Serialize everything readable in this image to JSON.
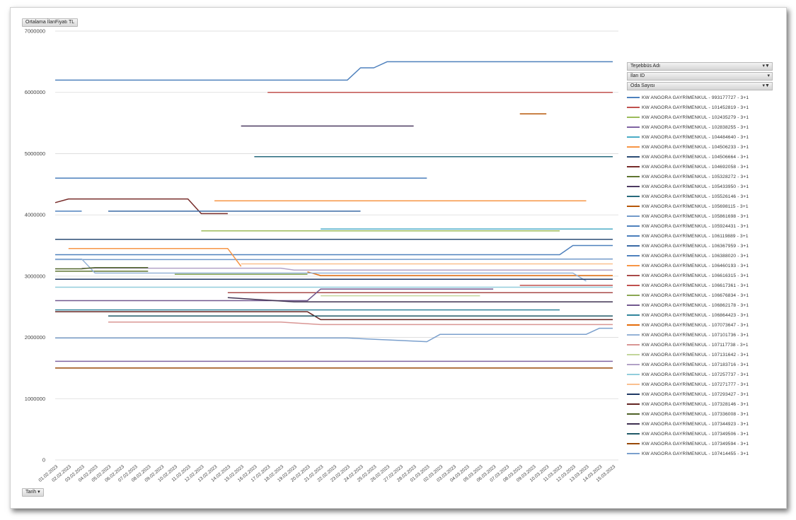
{
  "value_field_label": "Ortalama İlanFiyatı TL",
  "axis_field_label": "Tarih",
  "axis_field_icon": "dropdown-arrow-icon",
  "filters": [
    {
      "label": "Teşebbüs Adı",
      "icon": "filter-icon"
    },
    {
      "label": "İlan ID",
      "icon": "dropdown-arrow-icon"
    },
    {
      "label": "Oda Sayısı",
      "icon": "filter-icon"
    }
  ],
  "chart_data": {
    "type": "line",
    "ylim": [
      0,
      7000000
    ],
    "grid": true,
    "legend_position": "right",
    "y_ticks": [
      {
        "value": 0,
        "label": "0"
      },
      {
        "value": 1000000,
        "label": "1000000"
      },
      {
        "value": 2000000,
        "label": "2000000"
      },
      {
        "value": 3000000,
        "label": "3000000"
      },
      {
        "value": 4000000,
        "label": "4000000"
      },
      {
        "value": 5000000,
        "label": "5000000"
      },
      {
        "value": 6000000,
        "label": "6000000"
      },
      {
        "value": 7000000,
        "label": "7000000"
      }
    ],
    "x_categories": [
      "01.02.2023",
      "02.02.2023",
      "03.02.2023",
      "04.02.2023",
      "05.02.2023",
      "06.02.2023",
      "07.02.2023",
      "08.02.2023",
      "09.02.2023",
      "10.02.2023",
      "11.02.2023",
      "12.02.2023",
      "13.02.2023",
      "14.02.2023",
      "15.02.2023",
      "16.02.2023",
      "17.02.2023",
      "18.02.2023",
      "19.02.2023",
      "20.02.2023",
      "21.02.2023",
      "22.02.2023",
      "23.02.2023",
      "24.02.2023",
      "25.02.2023",
      "26.02.2023",
      "27.02.2023",
      "28.02.2023",
      "01.03.2023",
      "02.03.2023",
      "03.03.2023",
      "04.03.2023",
      "05.03.2023",
      "06.03.2023",
      "07.03.2023",
      "08.03.2023",
      "09.03.2023",
      "10.03.2023",
      "11.03.2023",
      "12.03.2023",
      "13.03.2023",
      "14.03.2023",
      "15.03.2023"
    ],
    "series": [
      {
        "name": "KW ANGORA GAYRİMENKUL - 993177727 - 3+1",
        "color": "#4e81bd",
        "points": [
          [
            0,
            4060000
          ],
          [
            2,
            4060000
          ]
        ]
      },
      {
        "name": "KW ANGORA GAYRİMENKUL - 101452819 - 3+1",
        "color": "#c0504d",
        "points": [
          [
            16,
            6000000
          ],
          [
            42,
            6000000
          ]
        ]
      },
      {
        "name": "KW ANGORA GAYRİMENKUL - 102435279 - 3+1",
        "color": "#9bbb59",
        "points": [
          [
            11,
            3740000
          ],
          [
            38,
            3740000
          ]
        ]
      },
      {
        "name": "KW ANGORA GAYRİMENKUL - 102838255 - 3+1",
        "color": "#8064a2",
        "points": [
          [
            0,
            1610000
          ],
          [
            42,
            1610000
          ]
        ]
      },
      {
        "name": "KW ANGORA GAYRİMENKUL - 104484640 - 3+1",
        "color": "#4bacc6",
        "points": [
          [
            20,
            3770000
          ],
          [
            42,
            3770000
          ]
        ]
      },
      {
        "name": "KW ANGORA GAYRİMENKUL - 104506233 - 3+1",
        "color": "#f79646",
        "points": [
          [
            12,
            4230000
          ],
          [
            40,
            4230000
          ]
        ]
      },
      {
        "name": "KW ANGORA GAYRİMENKUL - 104506664 - 3+1",
        "color": "#2c4d75",
        "points": [
          [
            0,
            3600000
          ],
          [
            42,
            3600000
          ]
        ]
      },
      {
        "name": "KW ANGORA GAYRİMENKUL - 104692058 - 3+1",
        "color": "#772c2a",
        "points": [
          [
            0,
            4200000
          ],
          [
            1,
            4260000
          ],
          [
            10,
            4260000
          ],
          [
            11,
            4020000
          ],
          [
            13,
            4020000
          ]
        ]
      },
      {
        "name": "KW ANGORA GAYRİMENKUL - 105328272 - 3+1",
        "color": "#5f7530",
        "points": [
          [
            0,
            3080000
          ],
          [
            7,
            3080000
          ]
        ]
      },
      {
        "name": "KW ANGORA GAYRİMENKUL - 105433950 - 3+1",
        "color": "#4d3b62",
        "points": [
          [
            14,
            5450000
          ],
          [
            27,
            5450000
          ]
        ]
      },
      {
        "name": "KW ANGORA GAYRİMENKUL - 105526146 - 3+1",
        "color": "#276a7c",
        "points": [
          [
            15,
            4950000
          ],
          [
            42,
            4950000
          ]
        ]
      },
      {
        "name": "KW ANGORA GAYRİMENKUL - 105698115 - 3+1",
        "color": "#b65708",
        "points": [
          [
            35,
            5650000
          ],
          [
            37,
            5650000
          ]
        ]
      },
      {
        "name": "KW ANGORA GAYRİMENKUL - 105861698 - 3+1",
        "color": "#729aca",
        "points": [
          [
            0,
            3270000
          ],
          [
            6,
            3270000
          ],
          [
            20,
            3270000
          ],
          [
            42,
            3280000
          ]
        ]
      },
      {
        "name": "KW ANGORA GAYRİMENKUL - 105924431 - 3+1",
        "color": "#4f81bd",
        "points": [
          [
            0,
            6200000
          ],
          [
            22,
            6200000
          ],
          [
            23,
            6400000
          ],
          [
            24,
            6400000
          ],
          [
            25,
            6500000
          ],
          [
            42,
            6500000
          ]
        ]
      },
      {
        "name": "KW ANGORA GAYRİMENKUL - 106119889 - 3+1",
        "color": "#4a7ebb",
        "points": [
          [
            0,
            4600000
          ],
          [
            28,
            4600000
          ]
        ]
      },
      {
        "name": "KW ANGORA GAYRİMENKUL - 106367959 - 3+1",
        "color": "#3a6aa5",
        "points": [
          [
            4,
            4060000
          ],
          [
            23,
            4060000
          ]
        ]
      },
      {
        "name": "KW ANGORA GAYRİMENKUL - 106388020 - 3+1",
        "color": "#4f81bd",
        "points": [
          [
            0,
            3350000
          ],
          [
            38,
            3350000
          ],
          [
            39,
            3500000
          ],
          [
            42,
            3500000
          ]
        ]
      },
      {
        "name": "KW ANGORA GAYRİMENKUL - 106460193 - 3+1",
        "color": "#f79646",
        "points": [
          [
            1,
            3450000
          ],
          [
            13,
            3450000
          ],
          [
            14,
            3160000
          ]
        ]
      },
      {
        "name": "KW ANGORA GAYRİMENKUL - 106616315 - 3+1",
        "color": "#a94a48",
        "points": [
          [
            13,
            2730000
          ],
          [
            42,
            2730000
          ]
        ]
      },
      {
        "name": "KW ANGORA GAYRİMENKUL - 106617361 - 3+1",
        "color": "#c0504d",
        "points": [
          [
            35,
            2850000
          ],
          [
            42,
            2850000
          ]
        ]
      },
      {
        "name": "KW ANGORA GAYRİMENKUL - 106676834 - 3+1",
        "color": "#8aa653",
        "points": [
          [
            9,
            3030000
          ],
          [
            19,
            3030000
          ]
        ]
      },
      {
        "name": "KW ANGORA GAYRİMENKUL - 106862178 - 3+1",
        "color": "#71588f",
        "points": [
          [
            0,
            2600000
          ],
          [
            13,
            2600000
          ],
          [
            19,
            2600000
          ],
          [
            20,
            2790000
          ],
          [
            33,
            2790000
          ]
        ]
      },
      {
        "name": "KW ANGORA GAYRİMENKUL - 106864423 - 3+1",
        "color": "#31859c",
        "points": [
          [
            0,
            2450000
          ],
          [
            38,
            2450000
          ]
        ]
      },
      {
        "name": "KW ANGORA GAYRİMENKUL - 107073647 - 3+1",
        "color": "#e46c0a",
        "points": [
          [
            19,
            3070000
          ],
          [
            20,
            3010000
          ],
          [
            42,
            3010000
          ]
        ]
      },
      {
        "name": "KW ANGORA GAYRİMENKUL - 107101736 - 3+1",
        "color": "#95b3d7",
        "points": [
          [
            0,
            3280000
          ],
          [
            2,
            3280000
          ],
          [
            3,
            3050000
          ],
          [
            6,
            3050000
          ],
          [
            39,
            3050000
          ],
          [
            40,
            2920000
          ]
        ]
      },
      {
        "name": "KW ANGORA GAYRİMENKUL - 107117738 - 3+1",
        "color": "#d99694",
        "points": [
          [
            4,
            2250000
          ],
          [
            10,
            2250000
          ],
          [
            17,
            2250000
          ],
          [
            20,
            2210000
          ],
          [
            42,
            2210000
          ]
        ]
      },
      {
        "name": "KW ANGORA GAYRİMENKUL - 107131642 - 3+1",
        "color": "#c3d69b",
        "points": [
          [
            20,
            2680000
          ],
          [
            32,
            2680000
          ]
        ]
      },
      {
        "name": "KW ANGORA GAYRİMENKUL - 107183716 - 3+1",
        "color": "#b2a2c7",
        "points": [
          [
            2,
            3130000
          ],
          [
            17,
            3130000
          ],
          [
            18,
            3100000
          ],
          [
            42,
            3100000
          ]
        ]
      },
      {
        "name": "KW ANGORA GAYRİMENKUL - 107257737 - 3+1",
        "color": "#92cddc",
        "points": [
          [
            0,
            2820000
          ],
          [
            42,
            2820000
          ]
        ]
      },
      {
        "name": "KW ANGORA GAYRİMENKUL - 107271777 - 3+1",
        "color": "#fac08f",
        "points": [
          [
            14,
            3200000
          ],
          [
            42,
            3200000
          ]
        ]
      },
      {
        "name": "KW ANGORA GAYRİMENKUL - 107293427 - 3+1",
        "color": "#1f3864",
        "points": [
          [
            0,
            2950000
          ],
          [
            9,
            2950000
          ],
          [
            11,
            2950000
          ],
          [
            42,
            2950000
          ]
        ]
      },
      {
        "name": "KW ANGORA GAYRİMENKUL - 107328146 - 3+1",
        "color": "#632523",
        "points": [
          [
            0,
            2420000
          ],
          [
            16,
            2420000
          ],
          [
            19,
            2420000
          ],
          [
            20,
            2290000
          ],
          [
            42,
            2290000
          ]
        ]
      },
      {
        "name": "KW ANGORA GAYRİMENKUL - 107336008 - 3+1",
        "color": "#4f6228",
        "points": [
          [
            0,
            3120000
          ],
          [
            2,
            3120000
          ],
          [
            3,
            3140000
          ],
          [
            7,
            3140000
          ]
        ]
      },
      {
        "name": "KW ANGORA GAYRİMENKUL - 107344923 - 3+1",
        "color": "#3f3151",
        "points": [
          [
            13,
            2650000
          ],
          [
            18,
            2580000
          ],
          [
            42,
            2580000
          ]
        ]
      },
      {
        "name": "KW ANGORA GAYRİMENKUL - 107349506 - 3+1",
        "color": "#215967",
        "points": [
          [
            4,
            2350000
          ],
          [
            11,
            2350000
          ],
          [
            26,
            2350000
          ],
          [
            36,
            2350000
          ],
          [
            42,
            2350000
          ]
        ]
      },
      {
        "name": "KW ANGORA GAYRİMENKUL - 107349594 - 3+1",
        "color": "#984807",
        "points": [
          [
            0,
            1500000
          ],
          [
            42,
            1500000
          ]
        ]
      },
      {
        "name": "KW ANGORA GAYRİMENKUL - 107414455 - 3+1",
        "color": "#7ba0cd",
        "points": [
          [
            0,
            1990000
          ],
          [
            22,
            1990000
          ],
          [
            28,
            1930000
          ],
          [
            29,
            2050000
          ],
          [
            40,
            2050000
          ],
          [
            41,
            2150000
          ],
          [
            42,
            2150000
          ]
        ]
      }
    ]
  }
}
